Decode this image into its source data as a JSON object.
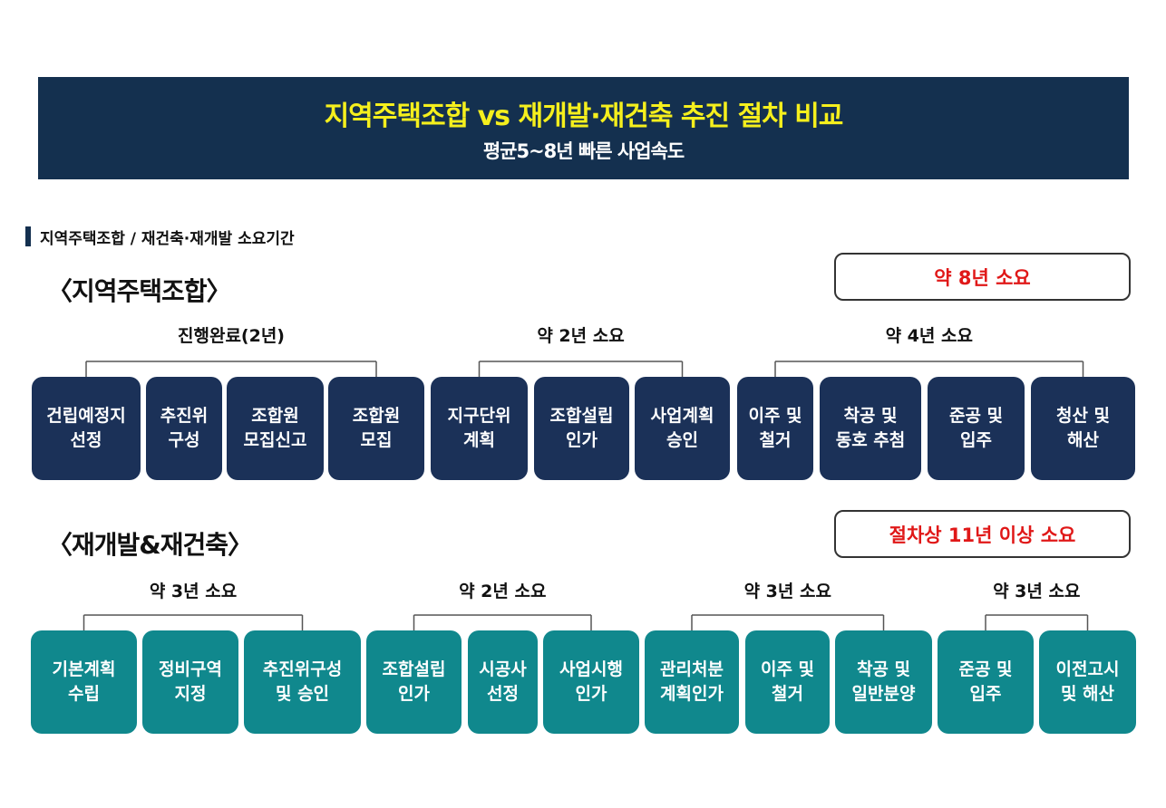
{
  "banner": {
    "title": "지역주택조합 vs 재개발·재건축 추진 절차 비교",
    "subtitle": "평균5~8년 빠른 사업속도"
  },
  "section_label": "지역주택조합 / 재건축·재개발 소요기간",
  "colors": {
    "banner": "#14304f",
    "title": "#f5ef1d",
    "navy_step": "#1b3158",
    "teal_step": "#10888d",
    "total_text": "#e01818"
  },
  "housing_union": {
    "title": "〈지역주택조합〉",
    "total": "약 8년 소요",
    "phases": [
      {
        "label": "진행완료(2년)",
        "steps": [
          "건립예정지\n선정",
          "추진위\n구성",
          "조합원\n모집신고",
          "조합원\n모집"
        ]
      },
      {
        "label": "약 2년 소요",
        "steps": [
          "지구단위\n계획",
          "조합설립\n인가",
          "사업계획\n승인"
        ]
      },
      {
        "label": "약 4년 소요",
        "steps": [
          "이주 및\n철거",
          "착공 및\n동호 추첨",
          "준공 및\n입주",
          "청산 및\n해산"
        ]
      }
    ]
  },
  "redevelopment": {
    "title": "〈재개발&재건축〉",
    "total": "절차상 11년 이상 소요",
    "phases": [
      {
        "label": "약 3년 소요",
        "steps": [
          "기본계획\n수립",
          "정비구역\n지정",
          "추진위구성\n및 승인"
        ]
      },
      {
        "label": "약 2년 소요",
        "steps": [
          "조합설립\n인가",
          "시공사\n선정",
          "사업시행\n인가"
        ]
      },
      {
        "label": "약 3년 소요",
        "steps": [
          "관리처분\n계획인가",
          "이주 및\n철거",
          "착공 및\n일반분양"
        ]
      },
      {
        "label": "약 3년 소요",
        "steps": [
          "준공 및\n입주",
          "이전고시\n및 해산"
        ]
      }
    ]
  }
}
